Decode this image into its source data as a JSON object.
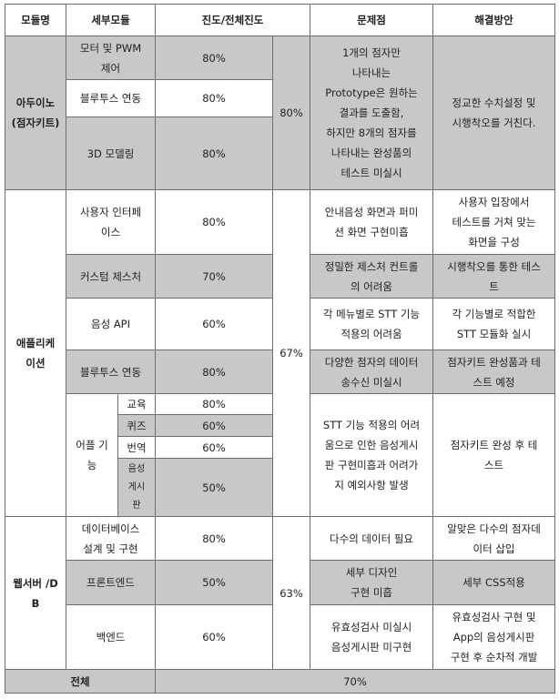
{
  "headers": {
    "module": "모듈명",
    "detail": "세부모듈",
    "progress": "진도/전체진도",
    "problem": "문제점",
    "solution": "해결방안"
  },
  "arduino": {
    "name": "아두이노\n(점자키트)",
    "total": "80%",
    "problem": "1개의 점자만\n나타내는\nPrototype은 원하는\n결과를 도출함,\n하지만 8개의 점자를\n나타내는 완성품의\n테스트 미실시",
    "solution": "정교한 수치설정 및\n시행착오를 거친다.",
    "rows": [
      {
        "detail": "모터 및 PWM\n제어",
        "progress": "80%"
      },
      {
        "detail": "블루투스 연동",
        "progress": "80%"
      },
      {
        "detail": "3D 모델링",
        "progress": "80%"
      }
    ]
  },
  "app": {
    "name": "애플리케\n이션",
    "total": "67%",
    "rows": [
      {
        "detail": "사용자 인터페\n이스",
        "progress": "80%",
        "problem": "안내음성 화면과 퍼미\n션 화면 구현미흡",
        "solution": "사용자 입장에서\n테스트를 거쳐 맞는\n화면을 구성"
      },
      {
        "detail": "커스텀 제스처",
        "progress": "70%",
        "problem": "정밀한 제스처 컨트롤\n의 어려움",
        "solution": "시행착오를 통한 테스\n트"
      },
      {
        "detail": "음성 API",
        "progress": "60%",
        "problem": "각 메뉴별로 STT 기능\n적용의 어려움",
        "solution": "각 기능별로 적합한\nSTT 모듈화 실시"
      },
      {
        "detail": "블루투스 연동",
        "progress": "80%",
        "problem": "다양한 점자의 데이터\n송수신 미실시",
        "solution": "점자키트 완성품과 테\n스트 예정"
      }
    ],
    "sub_app": {
      "label": "어플 기\n능",
      "problem": "STT 기능 적용의 어려\n움으로 인한 음성게시\n판 구현미흡과 어려가\n지 예외사항 발생",
      "solution": "점자키트 완성 후 테\n스트",
      "items": [
        {
          "name": "교육",
          "progress": "80%"
        },
        {
          "name": "퀴즈",
          "progress": "60%"
        },
        {
          "name": "번역",
          "progress": "60%"
        },
        {
          "name": "음성\n게시\n판",
          "progress": "50%"
        }
      ]
    }
  },
  "web": {
    "name": "웹서버 /D\nB",
    "total": "63%",
    "rows": [
      {
        "detail": "데이터베이스\n설계 및 구현",
        "progress": "80%",
        "problem": "다수의 데이터 필요",
        "solution": "알맞은 다수의 점자데\n이터 삽입"
      },
      {
        "detail": "프론트엔드",
        "progress": "50%",
        "problem": "세부 디자인\n구현 미흡",
        "solution": "세부 CSS적용"
      },
      {
        "detail": "백엔드",
        "progress": "60%",
        "problem": "유효성검사 미실시\n음성게시판 미구현",
        "solution": "유효성검사 구현 및\nApp의 음성게시판\n구현 후 순차적 개발"
      }
    ]
  },
  "overall": {
    "label": "전체",
    "value": "70%"
  }
}
